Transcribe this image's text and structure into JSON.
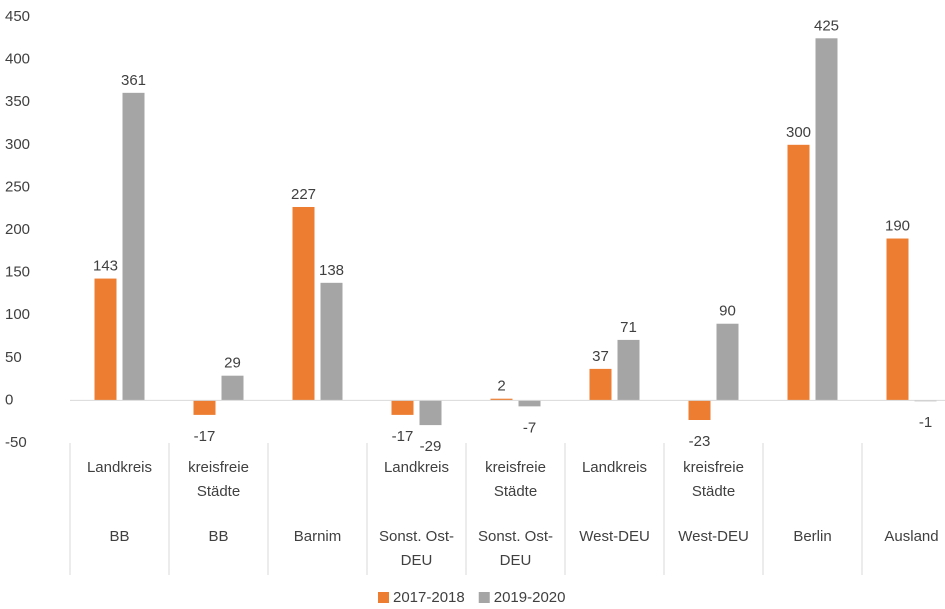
{
  "chart_data": {
    "type": "bar",
    "categories": [
      "BB",
      "BB",
      "Barnim",
      "Sonst. Ost-DEU",
      "Sonst. Ost-DEU",
      "West-DEU",
      "West-DEU",
      "Berlin",
      "Ausland"
    ],
    "subcategories": [
      "Landkreis",
      "kreisfreie Städte",
      null,
      "Landkreis",
      "kreisfreie Städte",
      "Landkreis",
      "kreisfreie Städte",
      null,
      null
    ],
    "series": [
      {
        "name": "2017-2018",
        "color": "#ed7d31",
        "values": [
          143,
          -17,
          227,
          -17,
          2,
          37,
          -23,
          300,
          190
        ]
      },
      {
        "name": "2019-2020",
        "color": "#a5a5a5",
        "values": [
          361,
          29,
          138,
          -29,
          -7,
          71,
          90,
          425,
          -1
        ]
      }
    ],
    "ylim": [
      -50,
      450
    ],
    "yticks": [
      -50,
      0,
      50,
      100,
      150,
      200,
      250,
      300,
      350,
      400,
      450
    ],
    "grid": false,
    "legend": "bottom"
  }
}
